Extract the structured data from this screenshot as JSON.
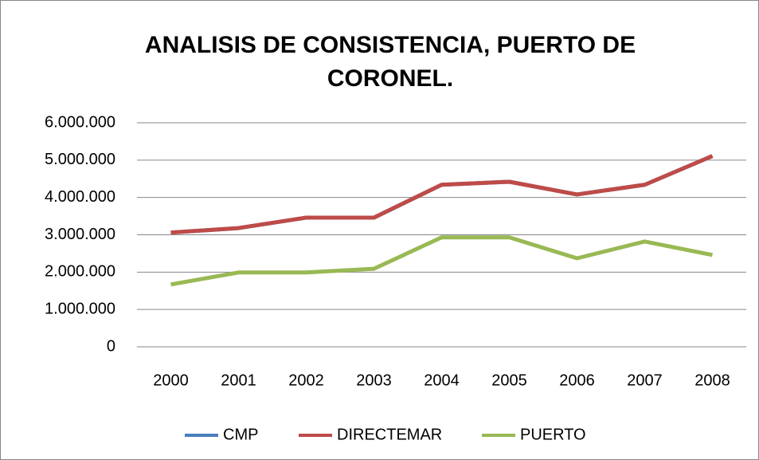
{
  "chart_data": {
    "type": "line",
    "title": "ANALISIS DE CONSISTENCIA, PUERTO DE CORONEL.",
    "categories": [
      "2000",
      "2001",
      "2002",
      "2003",
      "2004",
      "2005",
      "2006",
      "2007",
      "2008"
    ],
    "series": [
      {
        "name": "CMP",
        "color": "#4a7ebb",
        "values": [
          3060000,
          3180000,
          3460000,
          3460000,
          4340000,
          4420000,
          4080000,
          4340000,
          5110000
        ]
      },
      {
        "name": "DIRECTEMAR",
        "color": "#be4b48",
        "values": [
          3060000,
          3180000,
          3460000,
          3460000,
          4340000,
          4420000,
          4080000,
          4340000,
          5110000
        ]
      },
      {
        "name": "PUERTO",
        "color": "#98b954",
        "values": [
          1670000,
          1990000,
          1990000,
          2090000,
          2930000,
          2930000,
          2370000,
          2820000,
          2460000
        ]
      }
    ],
    "ylim": [
      0,
      6000000
    ],
    "yticks": [
      0,
      {
        "value": 1000000,
        "label": "1.000.000"
      },
      {
        "value": 2000000,
        "label": "2.000.000"
      },
      {
        "value": 3000000,
        "label": "3.000.000"
      },
      {
        "value": 4000000,
        "label": "4.000.000"
      },
      {
        "value": 5000000,
        "label": "5.000.000"
      },
      {
        "value": 6000000,
        "label": "6.000.000"
      }
    ],
    "grid": true,
    "legend": "bottom"
  }
}
